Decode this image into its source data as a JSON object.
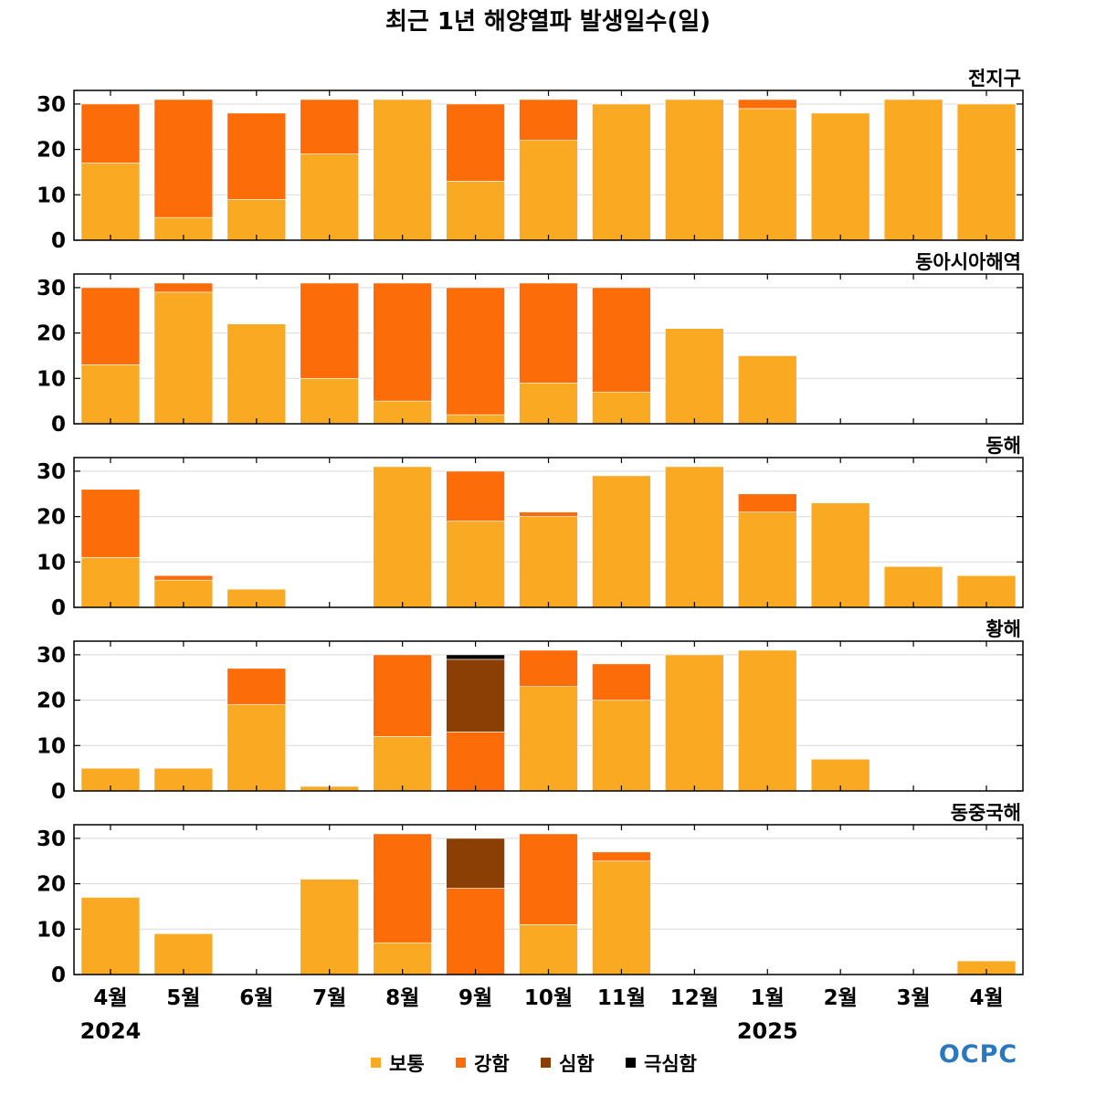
{
  "title": "최근 1년 해양열파 발생일수(일)",
  "chart_data": {
    "type": "bar",
    "stacked": true,
    "categories": [
      "4월",
      "5월",
      "6월",
      "7월",
      "8월",
      "9월",
      "10월",
      "11월",
      "12월",
      "1월",
      "2월",
      "3월",
      "4월"
    ],
    "year_labels": [
      {
        "category_index": 0,
        "label": "2024"
      },
      {
        "category_index": 9,
        "label": "2025"
      }
    ],
    "ylim": [
      0,
      33
    ],
    "yticks": [
      0,
      10,
      20,
      30
    ],
    "grid": true,
    "legend_position": "bottom-center",
    "series": [
      {
        "name": "보통",
        "color": "#FAA922"
      },
      {
        "name": "강함",
        "color": "#FC6C08"
      },
      {
        "name": "심함",
        "color": "#8C3F04"
      },
      {
        "name": "극심함",
        "color": "#000000"
      }
    ],
    "panels": [
      {
        "title": "전지구",
        "values": {
          "보통": [
            17,
            5,
            9,
            19,
            31,
            13,
            22,
            30,
            31,
            29,
            28,
            31,
            30
          ],
          "강함": [
            13,
            26,
            19,
            12,
            0,
            17,
            9,
            0,
            0,
            2,
            0,
            0,
            0
          ],
          "심함": [
            0,
            0,
            0,
            0,
            0,
            0,
            0,
            0,
            0,
            0,
            0,
            0,
            0
          ],
          "극심함": [
            0,
            0,
            0,
            0,
            0,
            0,
            0,
            0,
            0,
            0,
            0,
            0,
            0
          ]
        }
      },
      {
        "title": "동아시아해역",
        "values": {
          "보통": [
            13,
            29,
            22,
            10,
            5,
            2,
            9,
            7,
            21,
            15,
            0,
            0,
            0
          ],
          "강함": [
            17,
            2,
            0,
            21,
            26,
            28,
            22,
            23,
            0,
            0,
            0,
            0,
            0
          ],
          "심함": [
            0,
            0,
            0,
            0,
            0,
            0,
            0,
            0,
            0,
            0,
            0,
            0,
            0
          ],
          "극심함": [
            0,
            0,
            0,
            0,
            0,
            0,
            0,
            0,
            0,
            0,
            0,
            0,
            0
          ]
        }
      },
      {
        "title": "동해",
        "values": {
          "보통": [
            11,
            6,
            4,
            0,
            31,
            19,
            20,
            29,
            31,
            21,
            23,
            9,
            7
          ],
          "강함": [
            15,
            1,
            0,
            0,
            0,
            11,
            1,
            0,
            0,
            4,
            0,
            0,
            0
          ],
          "심함": [
            0,
            0,
            0,
            0,
            0,
            0,
            0,
            0,
            0,
            0,
            0,
            0,
            0
          ],
          "극심함": [
            0,
            0,
            0,
            0,
            0,
            0,
            0,
            0,
            0,
            0,
            0,
            0,
            0
          ]
        }
      },
      {
        "title": "황해",
        "values": {
          "보통": [
            5,
            5,
            19,
            1,
            12,
            0,
            23,
            20,
            30,
            31,
            7,
            0,
            0
          ],
          "강함": [
            0,
            0,
            8,
            0,
            18,
            13,
            8,
            8,
            0,
            0,
            0,
            0,
            0
          ],
          "심함": [
            0,
            0,
            0,
            0,
            0,
            16,
            0,
            0,
            0,
            0,
            0,
            0,
            0
          ],
          "극심함": [
            0,
            0,
            0,
            0,
            0,
            1,
            0,
            0,
            0,
            0,
            0,
            0,
            0
          ]
        }
      },
      {
        "title": "동중국해",
        "values": {
          "보통": [
            17,
            9,
            0,
            21,
            7,
            0,
            11,
            25,
            0,
            0,
            0,
            0,
            3
          ],
          "강함": [
            0,
            0,
            0,
            0,
            24,
            19,
            20,
            2,
            0,
            0,
            0,
            0,
            0
          ],
          "심함": [
            0,
            0,
            0,
            0,
            0,
            11,
            0,
            0,
            0,
            0,
            0,
            0,
            0
          ],
          "극심함": [
            0,
            0,
            0,
            0,
            0,
            0,
            0,
            0,
            0,
            0,
            0,
            0,
            0
          ]
        }
      }
    ]
  },
  "logo_text": "OCPC"
}
